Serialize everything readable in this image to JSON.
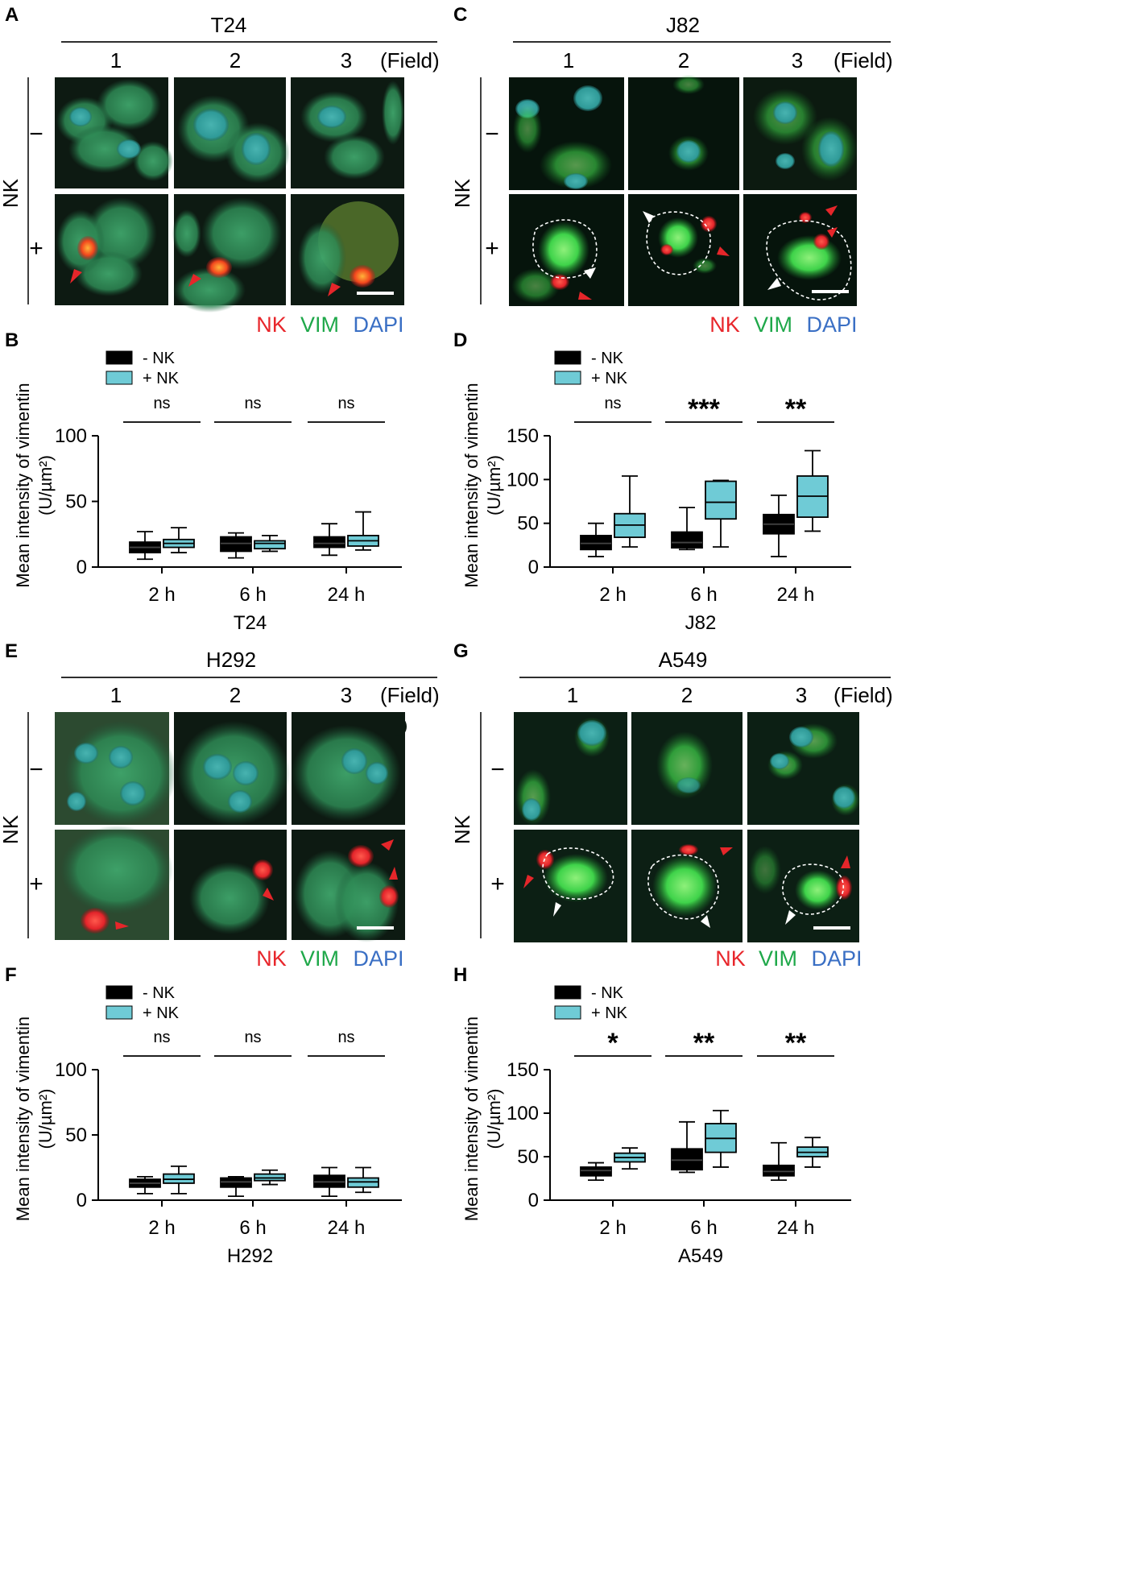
{
  "colors": {
    "nk_red": "#e8262b",
    "vim_green": "#1fa84a",
    "dapi_blue": "#3a6fc4",
    "minus_box": "#000000",
    "plus_box": "#6fcbd6"
  },
  "image_panels": [
    {
      "letter": "A",
      "cell_line": "T24",
      "fields": [
        "1",
        "2",
        "3"
      ],
      "field_suffix": "(Field)",
      "row_axis": "NK",
      "rows": [
        "−",
        "+"
      ],
      "legend": [
        "NK",
        "VIM",
        "DAPI"
      ]
    },
    {
      "letter": "C",
      "cell_line": "J82",
      "fields": [
        "1",
        "2",
        "3"
      ],
      "field_suffix": "(Field)",
      "row_axis": "NK",
      "rows": [
        "−",
        "+"
      ],
      "legend": [
        "NK",
        "VIM",
        "DAPI"
      ]
    },
    {
      "letter": "E",
      "cell_line": "H292",
      "fields": [
        "1",
        "2",
        "3"
      ],
      "field_suffix": "(Field)",
      "row_axis": "NK",
      "rows": [
        "−",
        "+"
      ],
      "legend": [
        "NK",
        "VIM",
        "DAPI"
      ]
    },
    {
      "letter": "G",
      "cell_line": "A549",
      "fields": [
        "1",
        "2",
        "3"
      ],
      "field_suffix": "(Field)",
      "row_axis": "NK",
      "rows": [
        "−",
        "+"
      ],
      "legend": [
        "NK",
        "VIM",
        "DAPI"
      ]
    }
  ],
  "chart_data": [
    {
      "letter": "B",
      "type": "box",
      "categories": [
        "2 h",
        "6 h",
        "24 h"
      ],
      "xlabel": "T24",
      "ylabel": "Mean intensity of vimentin (U/µm²)",
      "ylim": [
        0,
        100
      ],
      "yticks": [
        0,
        50,
        100
      ],
      "legend": [
        "- NK",
        "+ NK"
      ],
      "significance": [
        "ns",
        "ns",
        "ns"
      ],
      "series": [
        {
          "name": "- NK",
          "boxes": [
            {
              "min": 6,
              "q1": 11,
              "median": 15,
              "q3": 19,
              "max": 27
            },
            {
              "min": 7,
              "q1": 12,
              "median": 18,
              "q3": 23,
              "max": 26
            },
            {
              "min": 9,
              "q1": 15,
              "median": 18,
              "q3": 23,
              "max": 33
            }
          ]
        },
        {
          "name": "+ NK",
          "boxes": [
            {
              "min": 11,
              "q1": 15,
              "median": 18,
              "q3": 21,
              "max": 30
            },
            {
              "min": 12,
              "q1": 14,
              "median": 18,
              "q3": 20,
              "max": 24
            },
            {
              "min": 13,
              "q1": 16,
              "median": 20,
              "q3": 24,
              "max": 42
            }
          ]
        }
      ]
    },
    {
      "letter": "D",
      "type": "box",
      "categories": [
        "2 h",
        "6 h",
        "24 h"
      ],
      "xlabel": "J82",
      "ylabel": "Mean intensity of vimentin (U/µm²)",
      "ylim": [
        0,
        150
      ],
      "yticks": [
        0,
        50,
        100,
        150
      ],
      "legend": [
        "- NK",
        "+ NK"
      ],
      "significance": [
        "ns",
        "***",
        "**"
      ],
      "series": [
        {
          "name": "- NK",
          "boxes": [
            {
              "min": 12,
              "q1": 20,
              "median": 27,
              "q3": 36,
              "max": 50
            },
            {
              "min": 20,
              "q1": 22,
              "median": 28,
              "q3": 40,
              "max": 68
            },
            {
              "min": 12,
              "q1": 38,
              "median": 49,
              "q3": 60,
              "max": 82
            }
          ]
        },
        {
          "name": "+ NK",
          "boxes": [
            {
              "min": 23,
              "q1": 34,
              "median": 48,
              "q3": 61,
              "max": 104
            },
            {
              "min": 23,
              "q1": 55,
              "median": 74,
              "q3": 98,
              "max": 99
            },
            {
              "min": 41,
              "q1": 57,
              "median": 81,
              "q3": 104,
              "max": 133
            }
          ]
        }
      ]
    },
    {
      "letter": "F",
      "type": "box",
      "categories": [
        "2 h",
        "6 h",
        "24 h"
      ],
      "xlabel": "H292",
      "ylabel": "Mean intensity of vimentin (U/µm²)",
      "ylim": [
        0,
        100
      ],
      "yticks": [
        0,
        50,
        100
      ],
      "legend": [
        "- NK",
        "+ NK"
      ],
      "significance": [
        "ns",
        "ns",
        "ns"
      ],
      "series": [
        {
          "name": "- NK",
          "boxes": [
            {
              "min": 5,
              "q1": 10,
              "median": 13,
              "q3": 16,
              "max": 18
            },
            {
              "min": 3,
              "q1": 10,
              "median": 14,
              "q3": 17,
              "max": 18
            },
            {
              "min": 3,
              "q1": 10,
              "median": 14,
              "q3": 19,
              "max": 25
            }
          ]
        },
        {
          "name": "+ NK",
          "boxes": [
            {
              "min": 5,
              "q1": 13,
              "median": 16,
              "q3": 20,
              "max": 26
            },
            {
              "min": 12,
              "q1": 15,
              "median": 17,
              "q3": 20,
              "max": 23
            },
            {
              "min": 6,
              "q1": 10,
              "median": 14,
              "q3": 17,
              "max": 25
            }
          ]
        }
      ]
    },
    {
      "letter": "H",
      "type": "box",
      "categories": [
        "2 h",
        "6 h",
        "24 h"
      ],
      "xlabel": "A549",
      "ylabel": "Mean intensity of vimentin (U/µm²)",
      "ylim": [
        0,
        150
      ],
      "yticks": [
        0,
        50,
        100,
        150
      ],
      "legend": [
        "- NK",
        "+ NK"
      ],
      "significance": [
        "*",
        "**",
        "**"
      ],
      "series": [
        {
          "name": "- NK",
          "boxes": [
            {
              "min": 23,
              "q1": 28,
              "median": 34,
              "q3": 38,
              "max": 43
            },
            {
              "min": 32,
              "q1": 35,
              "median": 46,
              "q3": 59,
              "max": 90
            },
            {
              "min": 23,
              "q1": 28,
              "median": 33,
              "q3": 40,
              "max": 66
            }
          ]
        },
        {
          "name": "+ NK",
          "boxes": [
            {
              "min": 36,
              "q1": 44,
              "median": 49,
              "q3": 54,
              "max": 60
            },
            {
              "min": 38,
              "q1": 55,
              "median": 71,
              "q3": 88,
              "max": 103
            },
            {
              "min": 38,
              "q1": 50,
              "median": 55,
              "q3": 61,
              "max": 72
            }
          ]
        }
      ]
    }
  ]
}
